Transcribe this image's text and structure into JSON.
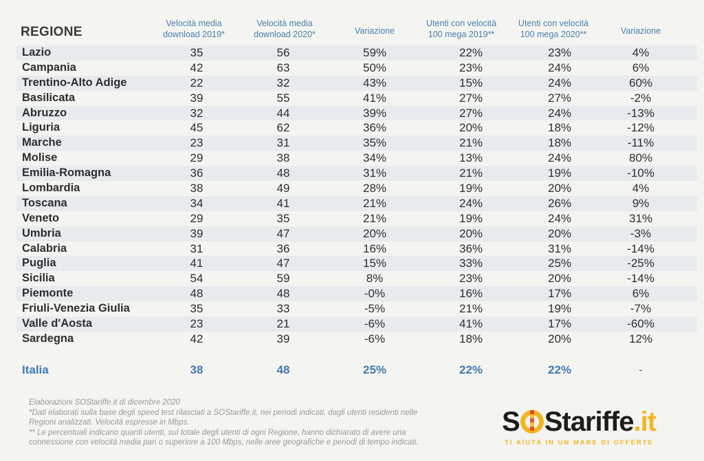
{
  "header": {
    "region": "REGIONE",
    "col1": [
      "Velocità media",
      "download 2019*"
    ],
    "col2": [
      "Velocità media",
      "download 2020*"
    ],
    "col3": [
      "Variazione"
    ],
    "col4": [
      "Utenti con velocità",
      "100 mega 2019**"
    ],
    "col5": [
      "Utenti con velocità",
      "100 mega 2020**"
    ],
    "col6": [
      "Variazione"
    ]
  },
  "rows": [
    [
      "Lazio",
      "35",
      "56",
      "59%",
      "22%",
      "23%",
      "4%"
    ],
    [
      "Campania",
      "42",
      "63",
      "50%",
      "23%",
      "24%",
      "6%"
    ],
    [
      "Trentino-Alto Adige",
      "22",
      "32",
      "43%",
      "15%",
      "24%",
      "60%"
    ],
    [
      "Basilicata",
      "39",
      "55",
      "41%",
      "27%",
      "27%",
      "-2%"
    ],
    [
      "Abruzzo",
      "32",
      "44",
      "39%",
      "27%",
      "24%",
      "-13%"
    ],
    [
      "Liguria",
      "45",
      "62",
      "36%",
      "20%",
      "18%",
      "-12%"
    ],
    [
      "Marche",
      "23",
      "31",
      "35%",
      "21%",
      "18%",
      "-11%"
    ],
    [
      "Molise",
      "29",
      "38",
      "34%",
      "13%",
      "24%",
      "80%"
    ],
    [
      "Emilia-Romagna",
      "36",
      "48",
      "31%",
      "21%",
      "19%",
      "-10%"
    ],
    [
      "Lombardia",
      "38",
      "49",
      "28%",
      "19%",
      "20%",
      "4%"
    ],
    [
      "Toscana",
      "34",
      "41",
      "21%",
      "24%",
      "26%",
      "9%"
    ],
    [
      "Veneto",
      "29",
      "35",
      "21%",
      "19%",
      "24%",
      "31%"
    ],
    [
      "Umbria",
      "39",
      "47",
      "20%",
      "20%",
      "20%",
      "-3%"
    ],
    [
      "Calabria",
      "31",
      "36",
      "16%",
      "36%",
      "31%",
      "-14%"
    ],
    [
      "Puglia",
      "41",
      "47",
      "15%",
      "33%",
      "25%",
      "-25%"
    ],
    [
      "Sicilia",
      "54",
      "59",
      "8%",
      "23%",
      "20%",
      "-14%"
    ],
    [
      "Piemonte",
      "48",
      "48",
      "-0%",
      "16%",
      "17%",
      "6%"
    ],
    [
      "Friuli-Venezia Giulia",
      "35",
      "33",
      "-5%",
      "21%",
      "19%",
      "-7%"
    ],
    [
      "Valle d'Aosta",
      "23",
      "21",
      "-6%",
      "41%",
      "17%",
      "-60%"
    ],
    [
      "Sardegna",
      "42",
      "39",
      "-6%",
      "18%",
      "20%",
      "12%"
    ]
  ],
  "total": [
    "Italia",
    "38",
    "48",
    "25%",
    "22%",
    "22%",
    "-"
  ],
  "notes": [
    "Elaborazioni SOStariffe.it di dicembre 2020",
    "*Dati elaborati sulla base degli speed test rilasciati a SOStariffe.it, nei periodi indicati, dagli utenti residenti nelle",
    "Regioni analizzati. Velocità espresse in Mbps.",
    "** Le percentuali indicano quanti utenti, sul totale degli utenti di ogni Regione, hanno dichiarato di avere una",
    "connessione con velocità media pari o superiore a 100 Mbps, nelle aree geografiche e periodi di tempo indicati."
  ],
  "logo": {
    "s": "S",
    "tariffe": "Stariffe",
    "dotit": ".it",
    "tagline": "TI AIUTA IN UN MARE DI OFFERTE"
  },
  "colors": {
    "header_blue": "#4a7fae",
    "total_blue": "#3f7bb1",
    "row_shade": "#e7ebee",
    "logo_yellow": "#f3b61f"
  }
}
